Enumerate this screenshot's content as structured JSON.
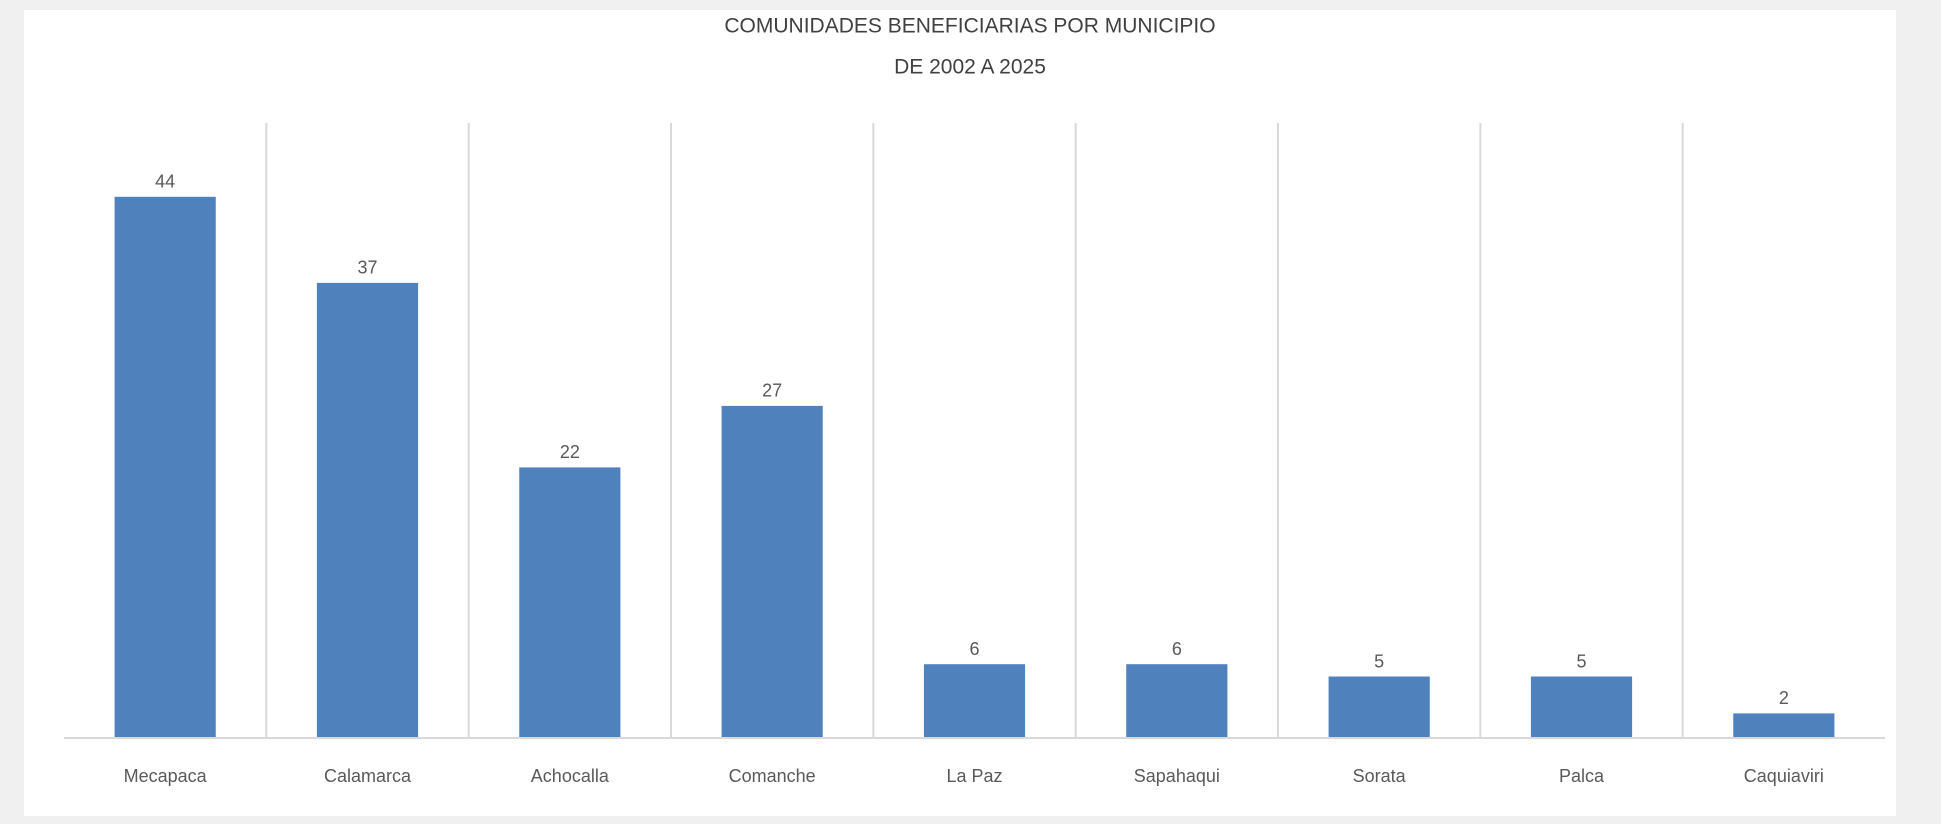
{
  "chart_data": {
    "type": "bar",
    "title": "COMUNIDADES BENEFICIARIAS POR MUNICIPIO",
    "subtitle": "DE 2002 A 2025",
    "categories": [
      "Mecapaca",
      "Calamarca",
      "Achocalla",
      "Comanche",
      "La Paz",
      "Sapahaqui",
      "Sorata",
      "Palca",
      "Caquiaviri"
    ],
    "values": [
      44,
      37,
      22,
      27,
      6,
      6,
      5,
      5,
      2
    ],
    "color": "#4f81bd",
    "ylim": [
      0,
      50
    ],
    "grid": true
  }
}
